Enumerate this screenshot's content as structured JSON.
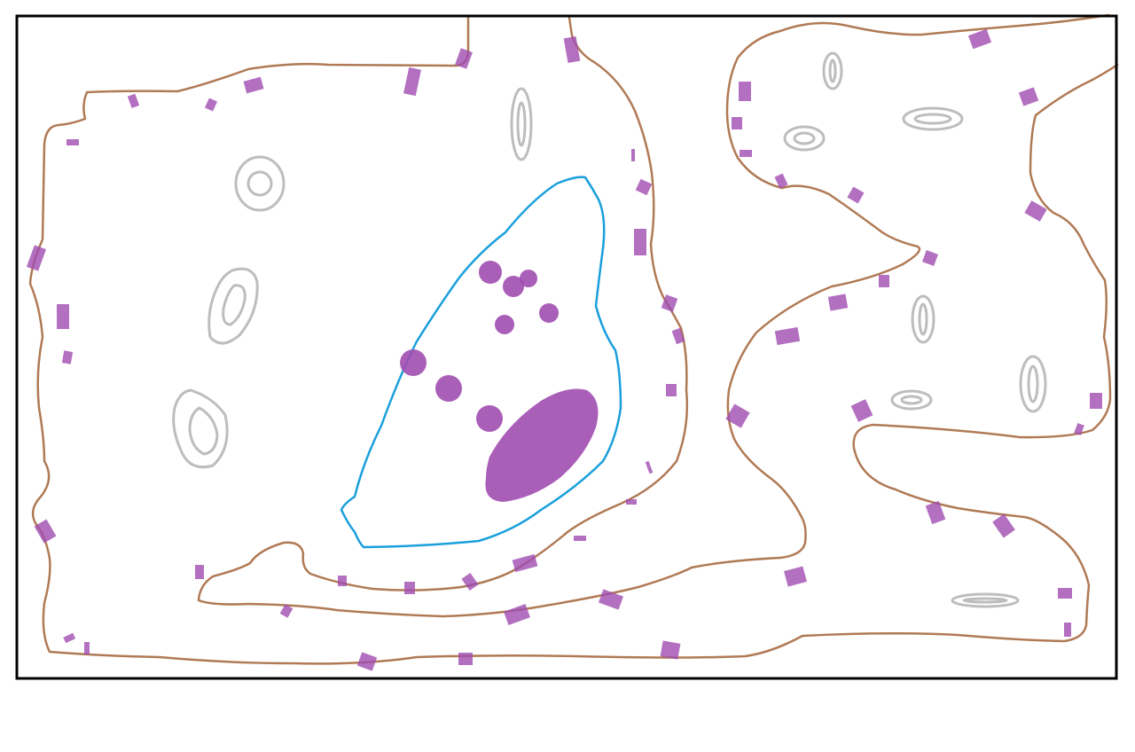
{
  "drawing": {
    "background": "#ffffff",
    "frame_color": "#000000",
    "outline_color": "#b07a55",
    "nucleus_outline_color": "#1a9fdc",
    "granule_color": "#a04cb0",
    "ring_color": "#bdbdbd"
  }
}
